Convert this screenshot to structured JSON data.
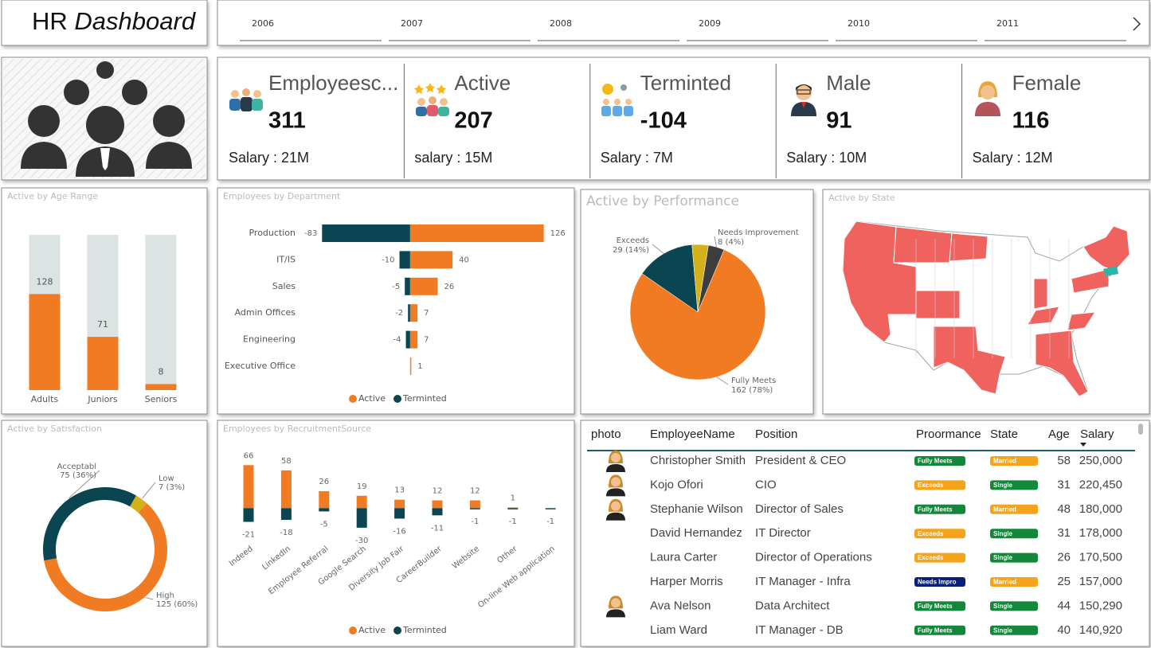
{
  "header": {
    "title_plain": "HR",
    "title_italic": "Dashboard"
  },
  "years": [
    "2006",
    "2007",
    "2008",
    "2009",
    "2010",
    "2011"
  ],
  "kpis": [
    {
      "label": "Employeesc...",
      "value": 311,
      "salary": "Salary : 21M"
    },
    {
      "label": "Active",
      "value": 207,
      "salary": "salary : 15M"
    },
    {
      "label": "Terminted",
      "value": -104,
      "salary": "Salary : 7M"
    },
    {
      "label": "Male",
      "value": 91,
      "salary": "Salary : 10M"
    },
    {
      "label": "Female",
      "value": 116,
      "salary": "Salary : 12M"
    }
  ],
  "chart_data": [
    {
      "type": "bar",
      "title": "Active by Age Range",
      "categories": [
        "Adults",
        "Juniors",
        "Seniors"
      ],
      "values": [
        128,
        71,
        8
      ],
      "color": "#F07B22",
      "background_color": "#DCE3E3",
      "ylim": [
        0,
        207
      ]
    },
    {
      "type": "diverging-hbar",
      "title": "Employees by Department",
      "categories": [
        "Production",
        "IT/IS",
        "Sales",
        "Admin Offices",
        "Engineering",
        "Executive Office"
      ],
      "series": [
        {
          "name": "Active",
          "color": "#F07B22",
          "values": [
            126,
            40,
            26,
            7,
            7,
            1
          ]
        },
        {
          "name": "Terminted",
          "color": "#0B4552",
          "values": [
            -83,
            -10,
            -5,
            -2,
            -4,
            null
          ]
        }
      ],
      "xlim": [
        -90,
        130
      ],
      "legend": "bottom"
    },
    {
      "type": "pie",
      "title": "Active by Performance",
      "categories": [
        "Needs Improvement",
        "Fully Meets",
        "Exceeds",
        null
      ],
      "values": [
        8,
        162,
        29,
        8
      ],
      "value_labels": [
        "8 (4%)",
        "162 (78%)",
        "29 (14%)",
        null
      ],
      "colors": [
        "#3D3D3D",
        "#F07B22",
        "#0B4552",
        "#D4B11B"
      ]
    },
    {
      "type": "map",
      "title": "Active by State",
      "color": "#F0625E",
      "highlight_color": "#2BB5A6"
    },
    {
      "type": "donut",
      "title": "Active by Satisfaction",
      "categories": [
        "Low",
        "High",
        "Acceptabl"
      ],
      "values": [
        7,
        125,
        75
      ],
      "value_labels": [
        "7 (3%)",
        "125 (60%)",
        "75 (36%)"
      ],
      "colors": [
        "#D4B11B",
        "#F07B22",
        "#0B4552"
      ]
    },
    {
      "type": "diverging-column",
      "title": "Employees by RecruitmentSource",
      "categories": [
        "Indeed",
        "LinkedIn",
        "Employee Referral",
        "Google Search",
        "Diversity Job Fair",
        "CareerBuilder",
        "Website",
        "Other",
        "On-line Web application"
      ],
      "series": [
        {
          "name": "Active",
          "color": "#F07B22",
          "values": [
            66,
            58,
            26,
            19,
            13,
            12,
            12,
            1,
            null
          ]
        },
        {
          "name": "Terminted",
          "color": "#0B4552",
          "values": [
            -21,
            -18,
            -5,
            -30,
            -16,
            -11,
            -1,
            -1,
            -1
          ]
        }
      ],
      "ylim": [
        -35,
        70
      ],
      "legend": "bottom"
    }
  ],
  "table": {
    "columns": [
      "photo",
      "EmployeeName",
      "Position",
      "Proormance",
      "State",
      "Age",
      "Salary"
    ],
    "rows": [
      [
        "Christopher Smith",
        "President & CEO",
        "Fully Meets",
        "Married",
        58,
        "250,000"
      ],
      [
        "Kojo Ofori",
        "CIO",
        "Exceeds",
        "Single",
        31,
        "220,450"
      ],
      [
        "Stephanie Wilson",
        "Director of Sales",
        "Fully Meets",
        "Married",
        48,
        "180,000"
      ],
      [
        "David Hernandez",
        "IT Director",
        "Exceeds",
        "Single",
        31,
        "178,000"
      ],
      [
        "Laura Carter",
        "Director of Operations",
        "Exceeds",
        "Single",
        26,
        "170,500"
      ],
      [
        "Harper Morris",
        "IT Manager - Infra",
        "Needs Impro",
        "Married",
        25,
        "157,000"
      ],
      [
        "Ava Nelson",
        "Data Architect",
        "Fully Meets",
        "Single",
        44,
        "150,290"
      ],
      [
        "Liam Ward",
        "IT Manager - DB",
        "Fully Meets",
        "Single",
        40,
        "140,920"
      ]
    ],
    "photo": [
      true,
      true,
      true,
      false,
      false,
      false,
      true,
      false
    ],
    "badge_colors": {
      "Fully Meets": "#14883A",
      "Exceeds": "#F5A31A",
      "Needs Impro": "#0A1F7A",
      "Married": "#F5A31A",
      "Single": "#14883A"
    }
  }
}
